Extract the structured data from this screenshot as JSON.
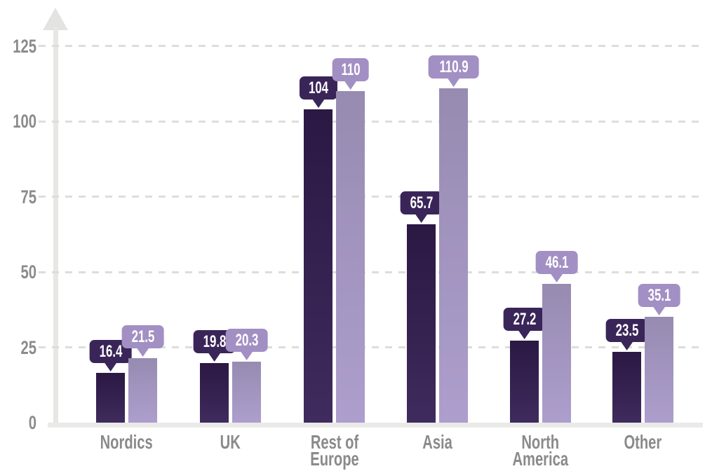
{
  "chart_data": {
    "type": "bar",
    "title": "",
    "xlabel": "",
    "ylabel": "",
    "categories": [
      "Nordics",
      "UK",
      "Rest of Europe",
      "Asia",
      "North America",
      "Other"
    ],
    "category_lines": [
      [
        "Nordics"
      ],
      [
        "UK"
      ],
      [
        "Rest of Europe"
      ],
      [
        "Asia"
      ],
      [
        "North",
        "America"
      ],
      [
        "Other"
      ]
    ],
    "series": [
      {
        "name": "dark-purple-series",
        "values": [
          16.4,
          19.8,
          104,
          65.7,
          27.2,
          23.5
        ],
        "labels": [
          "16.4",
          "19.8",
          "104",
          "65.7",
          "27.2",
          "23.5"
        ],
        "bar_color_top": "#2b1843",
        "bar_color_bottom": "#3f2b5d",
        "callout_color": "#3a2559"
      },
      {
        "name": "light-purple-series",
        "values": [
          21.5,
          20.3,
          110,
          110.9,
          46.1,
          35.1
        ],
        "labels": [
          "21.5",
          "20.3",
          "110",
          "110.9",
          "46.1",
          "35.1"
        ],
        "bar_color_top": "#978bb1",
        "bar_color_bottom": "#ad9ecd",
        "callout_color": "#a28fc3"
      }
    ],
    "yticks": [
      0,
      25,
      50,
      75,
      100,
      125
    ],
    "ylim": [
      0,
      130
    ],
    "grid": "horizontal-dashed",
    "legend": "none",
    "value_label_style": "speech-bubble-callout",
    "axis_text_color": "#8b8b8b",
    "category_text_color": "#8a8a8a",
    "gridline_color": "#dddddc",
    "axis_color": "#e7e7e5",
    "callout_text_color": "#ffffff"
  }
}
